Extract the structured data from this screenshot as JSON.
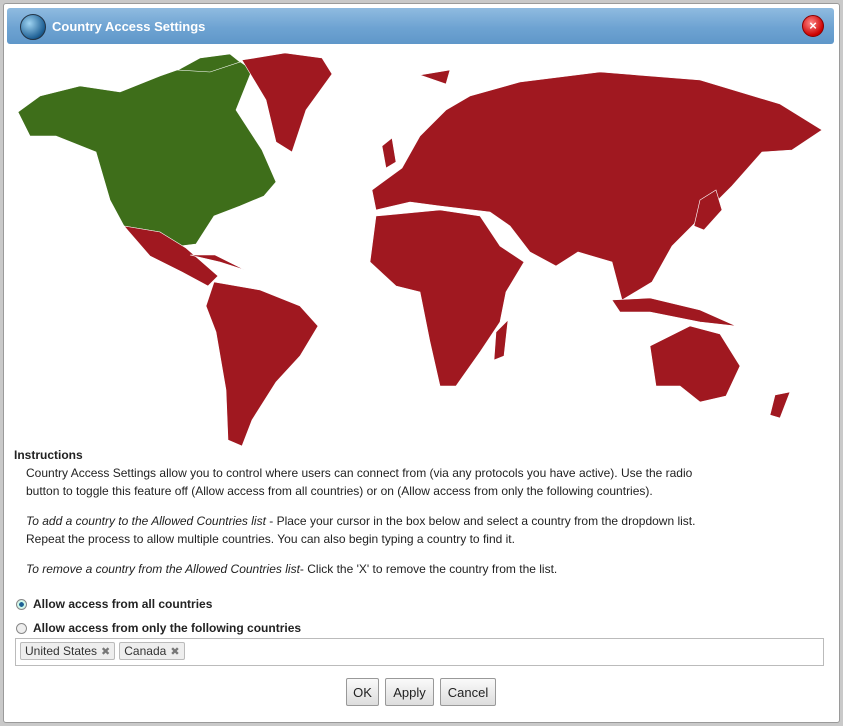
{
  "window": {
    "title": "Country Access Settings",
    "icon": "globe-lock-icon",
    "close_icon": "close-icon"
  },
  "map": {
    "allowed_color": "#3e6e1a",
    "blocked_color": "#a01820",
    "allowed_regions": [
      "United States",
      "Canada"
    ]
  },
  "instructions": {
    "heading": "Instructions",
    "p1": "Country Access Settings allow you to control where users can connect from (via any protocols you have active). Use the radio",
    "p1b": "button to toggle this feature off (Allow access from all countries) or on (Allow access from only the following countries).",
    "p2_em": "To add a country to the Allowed Countries list",
    "p2": " - Place your cursor in the box below and select a country from the dropdown list.",
    "p2b": "Repeat the process to allow multiple countries. You can also begin typing a country to find it.",
    "p3_em": "To remove a country from the Allowed Countries list",
    "p3": "- Click the 'X' to remove the country from the list."
  },
  "options": [
    {
      "label": "Allow access from all countries",
      "selected": true
    },
    {
      "label": "Allow access from only the following countries",
      "selected": false
    }
  ],
  "countries": [
    {
      "name": "United States",
      "remove": "✖"
    },
    {
      "name": "Canada",
      "remove": "✖"
    }
  ],
  "buttons": {
    "ok": "OK",
    "apply": "Apply",
    "cancel": "Cancel"
  }
}
